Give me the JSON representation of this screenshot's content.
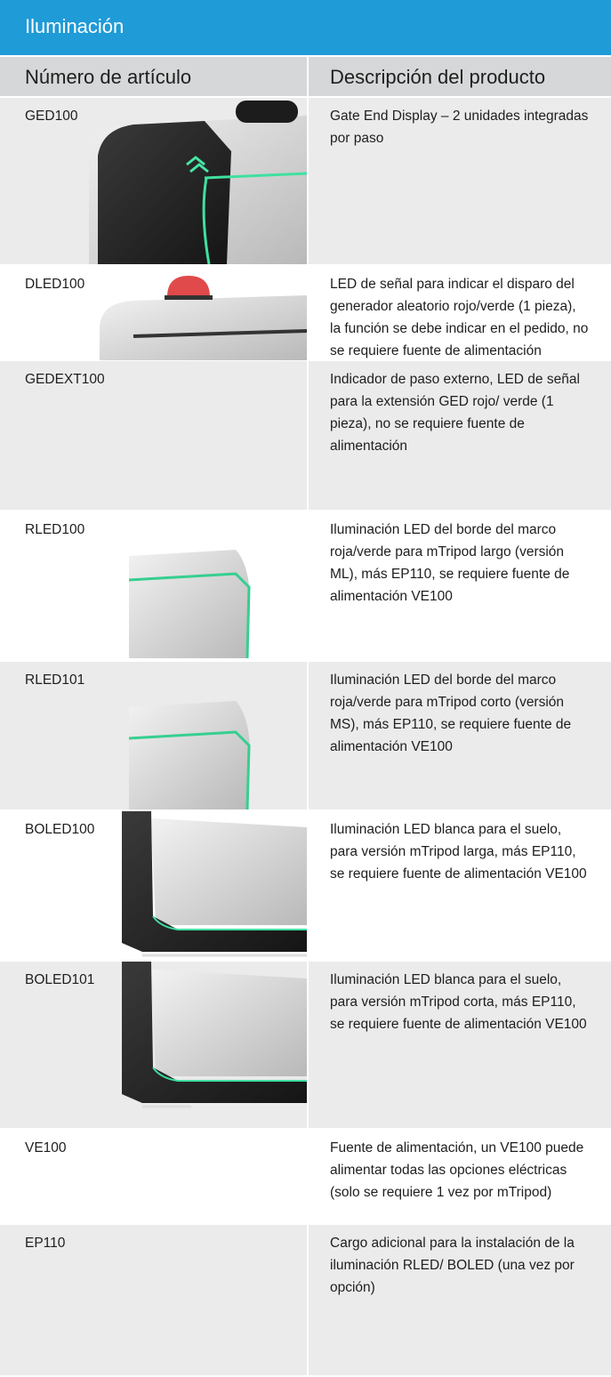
{
  "header": {
    "title": "Iluminación"
  },
  "table": {
    "columns": [
      "Número de artículo",
      "Descripción del producto"
    ],
    "rows": [
      [
        "GED100",
        "Gate End Display – 2 unidades integradas por paso"
      ],
      [
        "DLED100",
        "LED de señal para indicar el disparo del generador aleatorio rojo/verde (1 pieza), la función se debe indicar en el pedido, no se requiere fuente de alimentación"
      ],
      [
        "GEDEXT100",
        "Indicador de paso externo, LED de señal para la extensión GED rojo/ verde (1 pieza), no se requiere fuente de alimentación"
      ],
      [
        "RLED100",
        "Iluminación LED del borde del marco roja/verde para mTripod largo (versión ML), más EP110, se requiere fuente de alimentación VE100"
      ],
      [
        "RLED101",
        "Iluminación LED del borde del marco roja/verde para mTripod corto (versión MS), más EP110, se requiere fuente de alimentación VE100"
      ],
      [
        "BOLED100",
        "Iluminación LED blanca para el suelo, para versión mTripod larga, más EP110, se requiere fuente de alimentación VE100"
      ],
      [
        "BOLED101",
        "Iluminación LED blanca para el suelo, para versión mTripod corta, más EP110, se requiere fuente de alimentación VE100"
      ],
      [
        "VE100",
        "Fuente de alimentación, un VE100 puede alimentar todas las opciones eléctricas (solo se requiere 1 vez por mTripod)"
      ],
      [
        "EP110",
        "Cargo adicional para la instalación de la iluminación RLED/ BOLED (una vez por opción)"
      ]
    ]
  }
}
